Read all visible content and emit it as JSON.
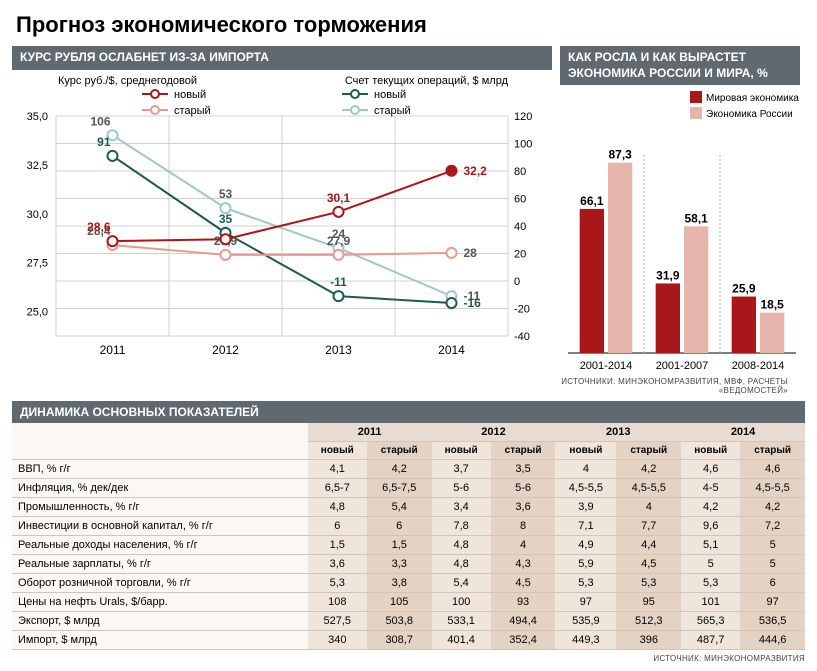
{
  "title": "Прогноз экономического торможения",
  "line_chart": {
    "header": "КУРС РУБЛЯ ОСЛАБНЕТ ИЗ-ЗА ИМПОРТА",
    "left_axis_title": "Курс руб./$, среднегодовой",
    "right_axis_title": "Счет текущих операций, $ млрд",
    "legend": {
      "left_new": "новый",
      "left_old": "старый",
      "right_new": "новый",
      "right_old": "старый"
    },
    "colors": {
      "left_new": "#a8181b",
      "left_old": "#e89a8c",
      "right_new": "#1f5a4f",
      "right_old": "#9fc9c3",
      "grid": "#d0d0d0",
      "bg": "#ffffff",
      "axis_text": "#000000",
      "left_label_color": "#a8181b",
      "right_label_color": "#1f5a4f",
      "old_label_color": "#555555"
    },
    "x_labels": [
      "2011",
      "2012",
      "2013",
      "2014"
    ],
    "left_axis": {
      "min": 23.75,
      "max": 35.0,
      "ticks": [
        25.0,
        27.5,
        30.0,
        32.5,
        35.0
      ],
      "tick_labels": [
        "25,0",
        "27,5",
        "30,0",
        "32,5",
        "35,0"
      ]
    },
    "right_axis": {
      "min": -40,
      "max": 120,
      "ticks": [
        -40,
        -20,
        0,
        20,
        40,
        60,
        80,
        100,
        120
      ]
    },
    "series": {
      "left_new": {
        "values": [
          28.6,
          28.7,
          30.1,
          32.2
        ],
        "labels": [
          "28,6",
          "",
          "30,1",
          "32,2"
        ]
      },
      "left_old": {
        "values": [
          28.4,
          27.9,
          27.9,
          28.0
        ],
        "labels": [
          "28,4",
          "27,9",
          "27,9",
          "28"
        ]
      },
      "right_new": {
        "values": [
          91,
          35,
          -11,
          -16
        ],
        "labels": [
          "91",
          "35",
          "-11",
          "-16"
        ]
      },
      "right_old": {
        "values": [
          106,
          53,
          24,
          -11
        ],
        "labels": [
          "106",
          "53",
          "24",
          "-11"
        ]
      }
    },
    "line_width": 2,
    "marker_radius": 5
  },
  "bar_chart": {
    "header": "КАК РОСЛА И КАК ВЫРАСТЕТ ЭКОНОМИКА РОССИИ И МИРА, %",
    "legend": {
      "world": "Мировая экономика",
      "russia": "Экономика России"
    },
    "colors": {
      "world": "#a8181b",
      "russia": "#e6b6ac",
      "axis": "#000",
      "grid": "#b0b0b0"
    },
    "groups": [
      {
        "label": "2001-2014",
        "world": 66.1,
        "russia": 87.3,
        "world_label": "66,1",
        "russia_label": "87,3"
      },
      {
        "label": "2001-2007",
        "world": 31.9,
        "russia": 58.1,
        "world_label": "31,9",
        "russia_label": "58,1"
      },
      {
        "label": "2008-2014",
        "world": 25.9,
        "russia": 18.5,
        "world_label": "25,9",
        "russia_label": "18,5"
      }
    ],
    "ymax": 100,
    "sources": "ИСТОЧНИКИ: МИНЭКОНОМРАЗВИТИЯ, МВФ, РАСЧЕТЫ «ВЕДОМОСТЕЙ»"
  },
  "table": {
    "header": "ДИНАМИКА ОСНОВНЫХ ПОКАЗАТЕЛЕЙ",
    "years": [
      "2011",
      "2012",
      "2013",
      "2014"
    ],
    "sub": [
      "новый",
      "старый"
    ],
    "rows": [
      {
        "label": "ВВП, % г/г",
        "cells": [
          "4,1",
          "4,2",
          "3,7",
          "3,5",
          "4",
          "4,2",
          "4,6",
          "4,6"
        ]
      },
      {
        "label": "Инфляция, % дек/дек",
        "cells": [
          "6,5-7",
          "6,5-7,5",
          "5-6",
          "5-6",
          "4,5-5,5",
          "4,5-5,5",
          "4-5",
          "4,5-5,5"
        ]
      },
      {
        "label": "Промышленность, % г/г",
        "cells": [
          "4,8",
          "5,4",
          "3,4",
          "3,6",
          "3,9",
          "4",
          "4,2",
          "4,2"
        ]
      },
      {
        "label": "Инвестиции в основной капитал, % г/г",
        "cells": [
          "6",
          "6",
          "7,8",
          "8",
          "7,1",
          "7,7",
          "9,6",
          "7,2"
        ]
      },
      {
        "label": "Реальные доходы населения, % г/г",
        "cells": [
          "1,5",
          "1,5",
          "4,8",
          "4",
          "4,9",
          "4,4",
          "5,1",
          "5"
        ]
      },
      {
        "label": "Реальные зарплаты, % г/г",
        "cells": [
          "3,6",
          "3,3",
          "4,8",
          "4,3",
          "5,9",
          "4,5",
          "5",
          "5"
        ]
      },
      {
        "label": "Оборот розничной торговли, % г/г",
        "cells": [
          "5,3",
          "3,8",
          "5,4",
          "4,5",
          "5,3",
          "5,3",
          "5,3",
          "6"
        ]
      },
      {
        "label": "Цены на нефть Urals, $/барр.",
        "cells": [
          "108",
          "105",
          "100",
          "93",
          "97",
          "95",
          "101",
          "97"
        ]
      },
      {
        "label": "Экспорт, $ млрд",
        "cells": [
          "527,5",
          "503,8",
          "533,1",
          "494,4",
          "535,9",
          "512,3",
          "565,3",
          "536,5"
        ]
      },
      {
        "label": "Импорт, $ млрд",
        "cells": [
          "340",
          "308,7",
          "401,4",
          "352,4",
          "449,3",
          "396",
          "487,7",
          "444,6"
        ]
      }
    ],
    "source": "ИСТОЧНИК: МИНЭКОНОМРАЗВИТИЯ"
  }
}
